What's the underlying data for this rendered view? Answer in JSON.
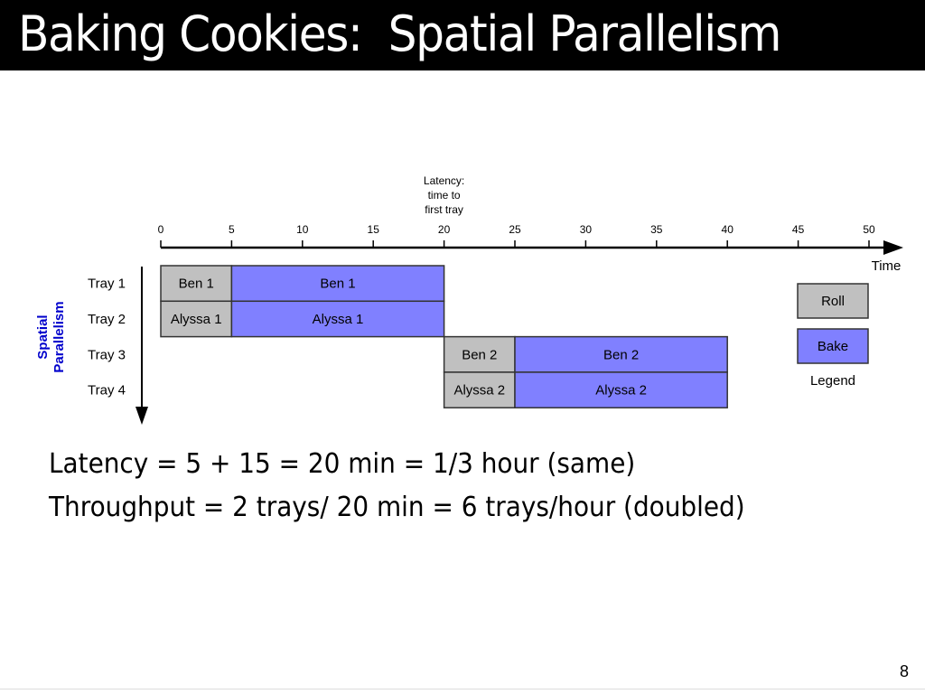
{
  "slide": {
    "title": "Baking Cookies:  Spatial Parallelism",
    "statements": {
      "latency": "Latency = 5 + 15 = 20 min = 1/3 hour (same)",
      "throughput": "Throughput = 2 trays/ 20 min = 6 trays/hour (doubled)"
    },
    "page_number": "8"
  },
  "diagram": {
    "latency_note": [
      "Latency:",
      "time to",
      "first tray"
    ],
    "time_label": "Time",
    "vertical_label": [
      "Spatial",
      "Parallelism"
    ],
    "ticks": [
      "0",
      "5",
      "10",
      "15",
      "20",
      "25",
      "30",
      "35",
      "40",
      "45",
      "50"
    ],
    "rows": [
      "Tray 1",
      "Tray 2",
      "Tray 3",
      "Tray 4"
    ],
    "bars": [
      {
        "row": 0,
        "start": 0,
        "end": 5,
        "label": "Ben 1",
        "kind": "roll"
      },
      {
        "row": 0,
        "start": 5,
        "end": 20,
        "label": "Ben 1",
        "kind": "bake"
      },
      {
        "row": 1,
        "start": 0,
        "end": 5,
        "label": "Alyssa 1",
        "kind": "roll"
      },
      {
        "row": 1,
        "start": 5,
        "end": 20,
        "label": "Alyssa 1",
        "kind": "bake"
      },
      {
        "row": 2,
        "start": 20,
        "end": 25,
        "label": "Ben 2",
        "kind": "roll"
      },
      {
        "row": 2,
        "start": 25,
        "end": 40,
        "label": "Ben 2",
        "kind": "bake"
      },
      {
        "row": 3,
        "start": 20,
        "end": 25,
        "label": "Alyssa 2",
        "kind": "roll"
      },
      {
        "row": 3,
        "start": 25,
        "end": 40,
        "label": "Alyssa 2",
        "kind": "bake"
      }
    ],
    "legend": {
      "title": "Legend",
      "items": [
        {
          "label": "Roll",
          "kind": "roll"
        },
        {
          "label": "Bake",
          "kind": "bake"
        }
      ]
    },
    "colors": {
      "roll": "#c0c0c0",
      "bake": "#8080ff",
      "vertical_label": "#0000cc",
      "axis": "#000000"
    }
  }
}
